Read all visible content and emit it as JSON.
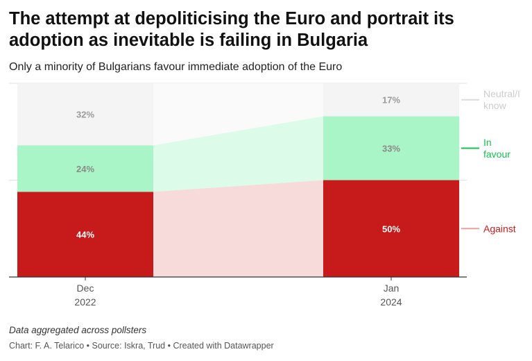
{
  "title": "The attempt at depoliticising the Euro and portrait its adoption as inevitable is failing in Bulgaria",
  "subtitle": "Only a minority of Bulgarians favour immediate adoption of the Euro",
  "note": "Data aggregated across pollsters",
  "footer": {
    "chart_by": "Chart: F. A. Telarico",
    "source": "Source: Iskra, Trud",
    "created_with": "Created with Datawrapper",
    "separator": "•"
  },
  "colors": {
    "against": "#c71a1a",
    "against_fill": "#f7dada",
    "favour": "#aaf5c8",
    "favour_fill": "#dcfbe8",
    "neutral": "#f4f4f4",
    "neutral_label": "#cccccc",
    "favour_label": "#10c34f",
    "against_label": "#c71a1a"
  },
  "chart_data": {
    "type": "bar",
    "stacked": true,
    "categories": [
      {
        "line1": "Dec",
        "line2": "2022"
      },
      {
        "line1": "Jan",
        "line2": "2024"
      }
    ],
    "series": [
      {
        "name": "Against",
        "values": [
          44,
          50
        ],
        "value_labels": [
          "44%",
          "50%"
        ],
        "legend_lines": [
          "Against"
        ]
      },
      {
        "name": "In favour",
        "values": [
          24,
          33
        ],
        "value_labels": [
          "24%",
          "33%"
        ],
        "legend_lines": [
          "In",
          "favour"
        ]
      },
      {
        "name": "Neutral/I know",
        "values": [
          32,
          17
        ],
        "value_labels": [
          "32%",
          "17%"
        ],
        "legend_lines": [
          "Neutral/I",
          "know"
        ]
      }
    ],
    "ylim": [
      0,
      100
    ],
    "legend_position": "right",
    "grid": true
  }
}
